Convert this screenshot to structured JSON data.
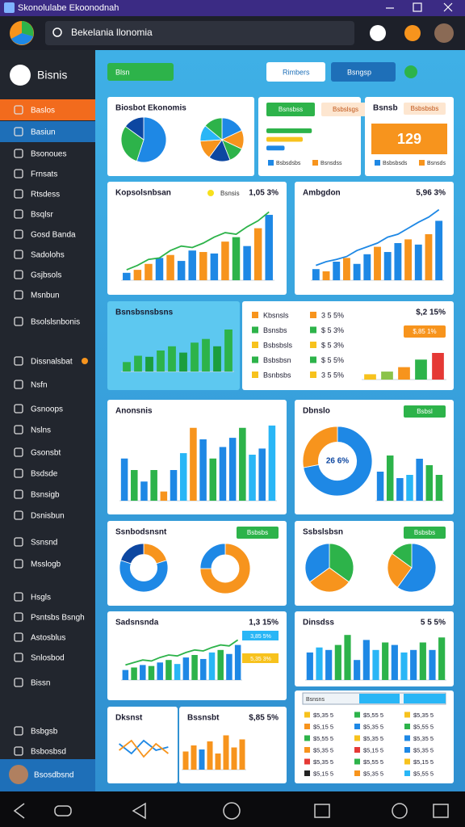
{
  "window": {
    "title": "Skonolulabe Ekoonodnah"
  },
  "search": "Bekelania llonomia",
  "sidebar": {
    "brand": "Bisnis",
    "items": [
      "Baslos",
      "Basiun",
      "Bsonoues",
      "Frnsats",
      "Rtsdess",
      "Bsqlsr",
      "Gosd Banda",
      "Sadolohs",
      "Gsjbsols",
      "Msnbun",
      "Bsolslsnbonis",
      "Dissnalsbat",
      "Nsfn",
      "Gsnoops",
      "Nslns",
      "Gsonsbt",
      "Bsdsde",
      "Bsnsigb",
      "Dsnisbun",
      "Ssnsnd",
      "Msslogb",
      "Hsgls",
      "Psntsbs Bsngh",
      "Astosblus",
      "Snlosbod",
      "Bissn",
      "Bsbgsb",
      "Bsbosbsd"
    ],
    "user": "Bsosdbsnd"
  },
  "toolbar": {
    "pill": "Blsn",
    "buttons": [
      "Rimbers",
      "Bsngsp"
    ]
  },
  "cards": [
    {
      "title": "Biosbot Ekonomis",
      "charts": [
        {
          "type": "pie",
          "values": [
            55,
            30,
            15
          ],
          "colors": [
            "#1e88e5",
            "#2db34a",
            "#0d47a1"
          ]
        },
        {
          "type": "pie",
          "values": [
            18,
            14,
            12,
            16,
            14,
            12,
            14
          ],
          "colors": [
            "#1e88e5",
            "#f7941d",
            "#2db34a",
            "#0d47a1",
            "#f7941d",
            "#29b6f6",
            "#2db34a"
          ]
        }
      ]
    },
    {
      "buttons": [
        "Bsnsbss",
        "Bsbslsgs"
      ],
      "charts": [
        {
          "type": "progress",
          "max": 100,
          "values": [
            75,
            60,
            30
          ],
          "colors": [
            "#2db34a",
            "#f7c21d",
            "#1e88e5"
          ]
        }
      ],
      "legend": [
        "Bsbsdsbs",
        "Bsnsdss"
      ]
    },
    {
      "title": "Bsnsb",
      "badge": "Bsbsbsbs",
      "big": "129",
      "legend": [
        "Bsbsbsds",
        "Bsnsds"
      ]
    },
    {
      "title": "Kopsolsnbsan",
      "key": "Bsnsis",
      "value": "1,05 3%",
      "charts": [
        {
          "type": "bar",
          "ylim": [
            0,
            100
          ],
          "values": [
            10,
            14,
            22,
            30,
            34,
            26,
            40,
            38,
            36,
            52,
            58,
            46,
            70,
            88
          ],
          "colors": [
            "#1e88e5",
            "#f7941d",
            "#f7941d",
            "#1e88e5",
            "#f7941d",
            "#1e88e5",
            "#1e88e5",
            "#f7941d",
            "#1e88e5",
            "#f7941d",
            "#2db34a",
            "#1e88e5",
            "#f7941d",
            "#1e88e5"
          ]
        },
        {
          "type": "line",
          "ylim": [
            0,
            100
          ],
          "color": "#2db34a",
          "values": [
            14,
            20,
            28,
            30,
            40,
            46,
            44,
            50,
            58,
            64,
            62,
            72,
            80,
            92
          ]
        }
      ]
    },
    {
      "title": "Ambgdon",
      "value": "5,96 3%",
      "charts": [
        {
          "type": "bar",
          "ylim": [
            0,
            100
          ],
          "values": [
            15,
            12,
            25,
            30,
            22,
            35,
            45,
            38,
            50,
            55,
            48,
            62,
            80
          ],
          "colors": [
            "#1e88e5",
            "#f7941d",
            "#1e88e5",
            "#f7941d",
            "#1e88e5",
            "#1e88e5",
            "#f7941d",
            "#1e88e5",
            "#1e88e5",
            "#f7941d",
            "#1e88e5",
            "#f7941d",
            "#1e88e5"
          ]
        },
        {
          "type": "line",
          "ylim": [
            0,
            100
          ],
          "color": "#1e88e5",
          "values": [
            20,
            25,
            28,
            32,
            40,
            45,
            50,
            58,
            62,
            70,
            78,
            85,
            95
          ]
        }
      ]
    },
    {
      "title": "Bsnsbsnsbsns",
      "background": "#5dc8f0",
      "charts": [
        {
          "type": "bar",
          "ylim": [
            0,
            100
          ],
          "values": [
            18,
            30,
            28,
            40,
            48,
            36,
            55,
            62,
            48,
            80
          ],
          "colors": [
            "#2db34a",
            "#2db34a",
            "#1b9e3e",
            "#2db34a",
            "#2db34a",
            "#1b9e3e",
            "#2db34a",
            "#2db34a",
            "#1b9e3e",
            "#2db34a"
          ]
        }
      ]
    },
    {
      "value": "$,2 15%",
      "badge": "$,85 1%",
      "rows": [
        {
          "label": "Kbsnsls",
          "value": "3 5 5%",
          "color": "#f7941d"
        },
        {
          "label": "Bsnsbs",
          "value": "$ 5 3%",
          "color": "#2db34a"
        },
        {
          "label": "Bsbsbsls",
          "value": "$ 5 3%",
          "color": "#f7c21d"
        },
        {
          "label": "Bsbsbsn",
          "value": "$ 5 5%",
          "color": "#2db34a"
        },
        {
          "label": "Bsnbsbs",
          "value": "3 5 5%",
          "color": "#f7c21d"
        }
      ],
      "charts": [
        {
          "type": "bar",
          "ylim": [
            0,
            100
          ],
          "values": [
            12,
            18,
            28,
            45,
            60
          ],
          "colors": [
            "#f7c21d",
            "#8bc34a",
            "#f7941d",
            "#2db34a",
            "#e53935"
          ]
        }
      ]
    },
    {
      "title": "Anonsnis",
      "charts": [
        {
          "type": "bar",
          "ylim": [
            0,
            100
          ],
          "values": [
            55,
            40,
            25,
            40,
            12,
            40,
            62,
            95,
            80,
            55,
            70,
            82,
            95,
            60,
            68,
            98
          ],
          "colors": [
            "#1e88e5",
            "#2db34a",
            "#1e88e5",
            "#2db34a",
            "#f7941d",
            "#1e88e5",
            "#29b6f6",
            "#f7941d",
            "#1e88e5",
            "#2db34a",
            "#1e88e5",
            "#1e88e5",
            "#2db34a",
            "#29b6f6",
            "#1e88e5",
            "#29b6f6"
          ]
        }
      ]
    },
    {
      "title": "Dbnslo",
      "badge": "Bsbsl",
      "center": "26 6%",
      "charts": [
        {
          "type": "donut",
          "values": [
            72,
            28
          ],
          "colors": [
            "#1e88e5",
            "#f7941d"
          ]
        },
        {
          "type": "bar",
          "ylim": [
            0,
            100
          ],
          "values": [
            45,
            70,
            35,
            40,
            65,
            55,
            40
          ],
          "colors": [
            "#1e88e5",
            "#2db34a",
            "#1e88e5",
            "#29b6f6",
            "#1e88e5",
            "#2db34a",
            "#2db34a"
          ]
        }
      ]
    },
    {
      "title": "Ssnbodsnsnt",
      "badge": "Bsbsbs",
      "charts": [
        {
          "type": "donut",
          "values": [
            20,
            60,
            20
          ],
          "colors": [
            "#f7941d",
            "#1e88e5",
            "#0d47a1"
          ]
        },
        {
          "type": "donut",
          "values": [
            75,
            25
          ],
          "colors": [
            "#f7941d",
            "#1e88e5"
          ]
        }
      ]
    },
    {
      "title": "Ssbslsbsn",
      "badge": "Bsbsbs",
      "charts": [
        {
          "type": "pie",
          "values": [
            35,
            30,
            35
          ],
          "colors": [
            "#2db34a",
            "#f7941d",
            "#1e88e5"
          ]
        },
        {
          "type": "pie",
          "values": [
            60,
            25,
            15
          ],
          "colors": [
            "#1e88e5",
            "#f7941d",
            "#2db34a"
          ]
        }
      ]
    },
    {
      "title": "Sadsnsnda",
      "value": "1,3 15%",
      "tags": [
        "3,85 5%",
        "5,35 3%"
      ],
      "charts": [
        {
          "type": "bar",
          "ylim": [
            0,
            100
          ],
          "values": [
            20,
            25,
            30,
            28,
            35,
            40,
            32,
            45,
            50,
            42,
            55,
            60,
            52,
            70
          ],
          "colors": [
            "#1e88e5",
            "#2db34a",
            "#1e88e5",
            "#2db34a",
            "#1e88e5",
            "#2db34a",
            "#29b6f6",
            "#1e88e5",
            "#2db34a",
            "#1e88e5",
            "#29b6f6",
            "#2db34a",
            "#1e88e5",
            "#1e88e5"
          ]
        },
        {
          "type": "line",
          "ylim": [
            0,
            100
          ],
          "color": "#2db34a",
          "values": [
            30,
            35,
            40,
            38,
            45,
            50,
            48,
            55,
            60,
            58,
            65,
            70,
            68,
            80
          ]
        }
      ]
    },
    {
      "title": "Dinsdss",
      "value": "5 5 5%",
      "charts": [
        {
          "type": "bar",
          "ylim": [
            0,
            100
          ],
          "values": [
            55,
            65,
            60,
            70,
            90,
            40,
            80,
            60,
            75,
            70,
            55,
            60,
            75,
            60,
            85
          ],
          "colors": [
            "#1e88e5",
            "#29b6f6",
            "#1e88e5",
            "#2db34a",
            "#2db34a",
            "#1e88e5",
            "#1e88e5",
            "#29b6f6",
            "#2db34a",
            "#1e88e5",
            "#29b6f6",
            "#1e88e5",
            "#2db34a",
            "#1e88e5",
            "#2db34a"
          ]
        }
      ]
    },
    {
      "title": "Dksnst",
      "charts": [
        {
          "type": "line",
          "ylim": [
            0,
            100
          ],
          "color": "#1e88e5",
          "values": [
            60,
            30,
            70,
            40,
            50
          ]
        },
        {
          "type": "line",
          "ylim": [
            0,
            100
          ],
          "color": "#f7941d",
          "values": [
            40,
            70,
            20,
            60,
            30
          ]
        }
      ]
    },
    {
      "title": "Bssnsbt",
      "value": "$,85 5%",
      "charts": [
        {
          "type": "bar",
          "ylim": [
            0,
            100
          ],
          "values": [
            45,
            60,
            50,
            70,
            40,
            85,
            55,
            75
          ],
          "colors": [
            "#f7941d",
            "#f7941d",
            "#1e88e5",
            "#f7941d",
            "#f7941d",
            "#f7941d",
            "#f7941d",
            "#f7941d"
          ]
        }
      ]
    },
    {
      "table": {
        "header": "Bsnsns",
        "rows": [
          [
            "$5,35 5",
            "$5,55 5",
            "$5,35 5"
          ],
          [
            "$5,15 5",
            "$5,35 5",
            "$5,55 5"
          ],
          [
            "$5,55 5",
            "$5,35 5",
            "$5,35 5"
          ],
          [
            "$5,35 5",
            "$5,15 5",
            "$5,35 5"
          ],
          [
            "$5,35 5",
            "$5,55 5",
            "$5,15 5"
          ],
          [
            "$5,15 5",
            "$5,35 5",
            "$5,55 5"
          ]
        ]
      }
    }
  ]
}
